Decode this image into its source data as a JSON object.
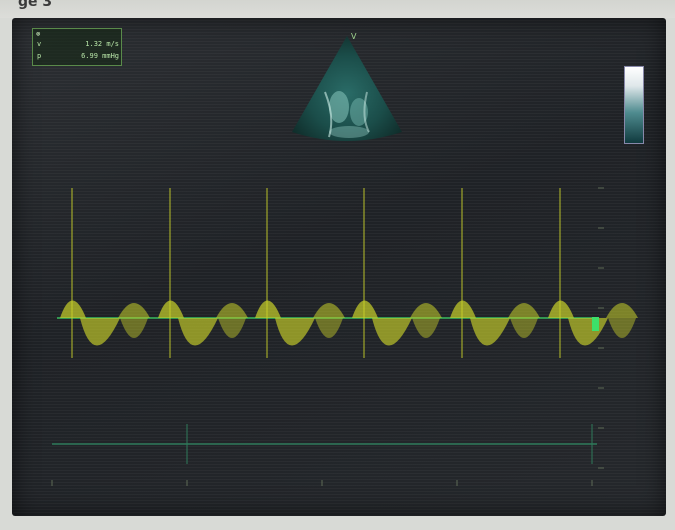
{
  "header": {
    "fragment_text": "ge 3"
  },
  "measurements": {
    "velocity_label": "v",
    "velocity_value": "1.32 m/s",
    "pressure_label": "p",
    "pressure_value": "6.99 mmHg"
  },
  "probe_marker": "V",
  "colors": {
    "doppler_trace": "#c9d12a",
    "baseline": "#3de06a",
    "screen_bg": "#23262a",
    "annotation": "#b8e6a8"
  },
  "icons": [
    "close-icon",
    "grayscale-bar",
    "echo-sector"
  ]
}
